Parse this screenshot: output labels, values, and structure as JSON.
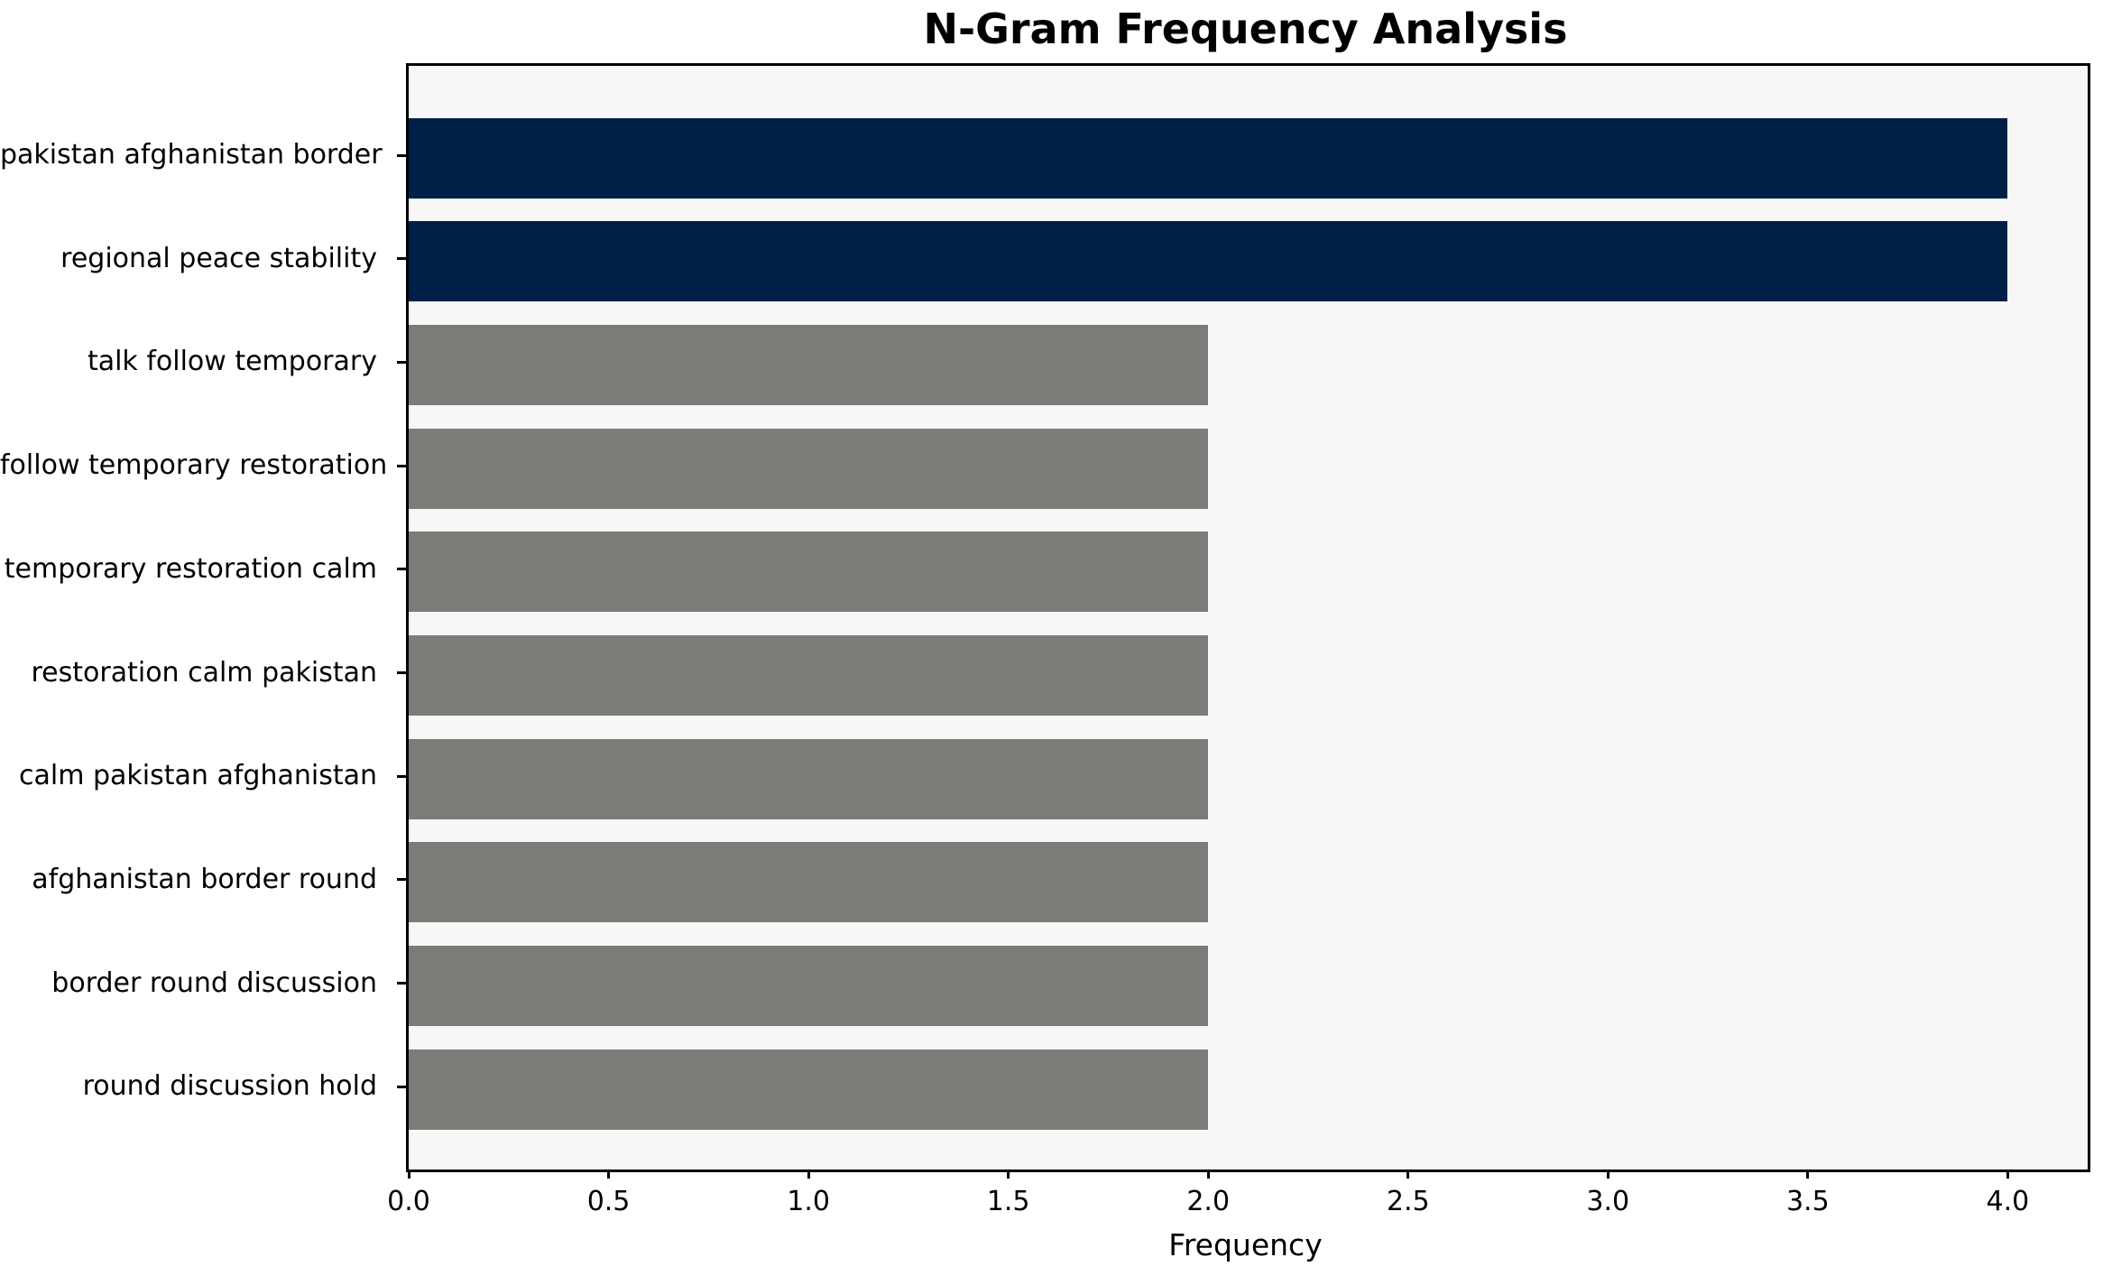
{
  "chart_data": {
    "type": "bar",
    "orientation": "horizontal",
    "title": "N-Gram Frequency Analysis",
    "xlabel": "Frequency",
    "ylabel": "",
    "categories": [
      "pakistan afghanistan border",
      "regional peace stability",
      "talk follow temporary",
      "follow temporary restoration",
      "temporary restoration calm",
      "restoration calm pakistan",
      "calm pakistan afghanistan",
      "afghanistan border round",
      "border round discussion",
      "round discussion hold"
    ],
    "values": [
      4,
      4,
      2,
      2,
      2,
      2,
      2,
      2,
      2,
      2
    ],
    "bar_colors": [
      "#002147",
      "#002147",
      "#7b7b78",
      "#7b7b78",
      "#7b7b78",
      "#7b7b78",
      "#7b7b78",
      "#7b7b78",
      "#7b7b78",
      "#7b7b78"
    ],
    "xlim": [
      0,
      4.2
    ],
    "xticks": [
      0.0,
      0.5,
      1.0,
      1.5,
      2.0,
      2.5,
      3.0,
      3.5,
      4.0
    ],
    "xtick_labels": [
      "0.0",
      "0.5",
      "1.0",
      "1.5",
      "2.0",
      "2.5",
      "3.0",
      "3.5",
      "4.0"
    ],
    "grid": false,
    "legend": "none",
    "plot_background": "#f7f7f7",
    "figure_background": "#ffffff",
    "highlight_color": "#002147",
    "default_color": "#7b7b78"
  }
}
